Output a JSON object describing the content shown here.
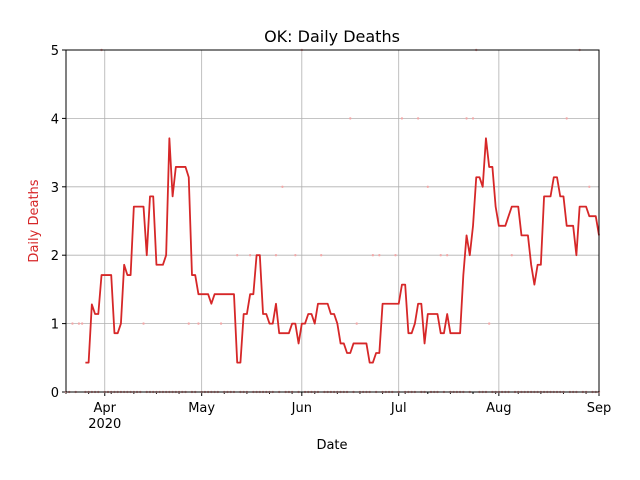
{
  "chart_data": {
    "type": "line",
    "title": "OK: Daily Deaths",
    "xlabel": "Date",
    "ylabel": "Daily Deaths",
    "ylabel_color": "#d62728",
    "categories": [
      null,
      null,
      null,
      null,
      null,
      null,
      null,
      null,
      null,
      null,
      null,
      null,
      "Apr\n2020",
      null,
      null,
      null,
      null,
      null,
      null,
      null,
      null,
      null,
      null,
      null,
      null,
      null,
      null,
      null,
      null,
      null,
      null,
      null,
      null,
      null,
      null,
      null,
      null,
      null,
      null,
      null,
      null,
      null,
      "May",
      null,
      null,
      null,
      null,
      null,
      null,
      null,
      null,
      null,
      null,
      null,
      null,
      null,
      null,
      null,
      null,
      null,
      null,
      null,
      null,
      null,
      null,
      null,
      null,
      null,
      null,
      null,
      null,
      null,
      null,
      "Jun",
      null,
      null,
      null,
      null,
      null,
      null,
      null,
      null,
      null,
      null,
      null,
      null,
      null,
      null,
      null,
      null,
      null,
      null,
      null,
      null,
      null,
      null,
      null,
      null,
      null,
      null,
      null,
      null,
      null,
      "Jul",
      null,
      null,
      null,
      null,
      null,
      null,
      null,
      null,
      null,
      null,
      null,
      null,
      null,
      null,
      null,
      null,
      null,
      null,
      null,
      null,
      null,
      null,
      null,
      null,
      null,
      null,
      null,
      null,
      null,
      null,
      "Aug",
      null,
      null,
      null,
      null,
      null,
      null,
      null,
      null,
      null,
      null,
      null,
      null,
      null,
      null,
      null,
      null,
      null,
      null,
      null,
      null,
      null,
      null,
      null,
      null,
      null,
      null,
      null,
      null,
      null,
      null,
      "Sep"
    ],
    "series": [
      {
        "style": "scatter",
        "color": "#f0a8a8",
        "values": [
          0,
          0,
          1,
          0,
          1,
          1,
          0,
          0,
          0,
          0,
          0,
          5,
          0,
          0,
          0,
          0,
          0,
          0,
          0,
          0,
          0,
          0,
          0,
          0,
          1,
          0,
          0,
          0,
          0,
          0,
          0,
          0,
          0,
          0,
          0,
          0,
          0,
          0,
          1,
          0,
          0,
          1,
          0,
          0,
          0,
          0,
          0,
          0,
          1,
          0,
          0,
          0,
          0,
          2,
          0,
          0,
          0,
          2,
          0,
          0,
          0,
          0,
          0,
          0,
          0,
          2,
          0,
          3,
          0,
          0,
          0,
          2,
          0,
          5,
          0,
          0,
          0,
          0,
          0,
          2,
          0,
          0,
          0,
          0,
          0,
          0,
          0,
          0,
          4,
          0,
          1,
          0,
          0,
          0,
          0,
          2,
          0,
          2,
          0,
          0,
          0,
          0,
          2,
          0,
          4,
          0,
          0,
          0,
          0,
          4,
          0,
          0,
          3,
          0,
          0,
          0,
          2,
          0,
          2,
          0,
          0,
          0,
          0,
          0,
          4,
          0,
          4,
          5,
          0,
          0,
          0,
          1,
          0,
          0,
          0,
          0,
          0,
          0,
          2,
          0,
          0,
          0,
          0,
          0,
          0,
          0,
          0,
          0,
          0,
          0,
          0,
          0,
          0,
          0,
          0,
          4,
          0,
          0,
          0,
          5,
          0,
          0,
          3,
          0,
          0,
          0
        ]
      },
      {
        "style": "line",
        "color": "#d62728",
        "values": [
          null,
          null,
          null,
          null,
          null,
          null,
          0.43,
          0.43,
          1.28,
          1.14,
          1.14,
          1.71,
          1.71,
          1.71,
          1.71,
          0.86,
          0.86,
          1.0,
          1.86,
          1.71,
          1.71,
          2.71,
          2.71,
          2.71,
          2.71,
          2.0,
          2.86,
          2.86,
          1.86,
          1.86,
          1.86,
          2.0,
          3.71,
          2.86,
          3.29,
          3.29,
          3.29,
          3.29,
          3.14,
          1.71,
          1.71,
          1.43,
          1.43,
          1.43,
          1.43,
          1.29,
          1.43,
          1.43,
          1.43,
          1.43,
          1.43,
          1.43,
          1.43,
          0.43,
          0.43,
          1.14,
          1.14,
          1.43,
          1.43,
          2.0,
          2.0,
          1.14,
          1.14,
          1.0,
          1.0,
          1.29,
          0.86,
          0.86,
          0.86,
          0.86,
          1.0,
          1.0,
          0.71,
          1.0,
          1.0,
          1.14,
          1.14,
          1.0,
          1.29,
          1.29,
          1.29,
          1.29,
          1.14,
          1.14,
          1.0,
          0.71,
          0.71,
          0.57,
          0.57,
          0.71,
          0.71,
          0.71,
          0.71,
          0.71,
          0.43,
          0.43,
          0.57,
          0.57,
          1.29,
          1.29,
          1.29,
          1.29,
          1.29,
          1.29,
          1.57,
          1.57,
          0.86,
          0.86,
          1.0,
          1.29,
          1.29,
          0.71,
          1.14,
          1.14,
          1.14,
          1.14,
          0.86,
          0.86,
          1.14,
          0.86,
          0.86,
          0.86,
          0.86,
          1.71,
          2.29,
          2.0,
          2.43,
          3.14,
          3.14,
          3.0,
          3.71,
          3.29,
          3.29,
          2.71,
          2.43,
          2.43,
          2.43,
          2.57,
          2.71,
          2.71,
          2.71,
          2.29,
          2.29,
          2.29,
          1.86,
          1.57,
          1.86,
          1.86,
          2.86,
          2.86,
          2.86,
          3.14,
          3.14,
          2.86,
          2.86,
          2.43,
          2.43,
          2.43,
          2.0,
          2.71,
          2.71,
          2.71,
          2.57,
          2.57,
          2.57,
          2.29
        ]
      }
    ],
    "ylim": [
      0,
      5
    ],
    "yticks": [
      0,
      1,
      2,
      3,
      4,
      5
    ],
    "grid": true
  }
}
